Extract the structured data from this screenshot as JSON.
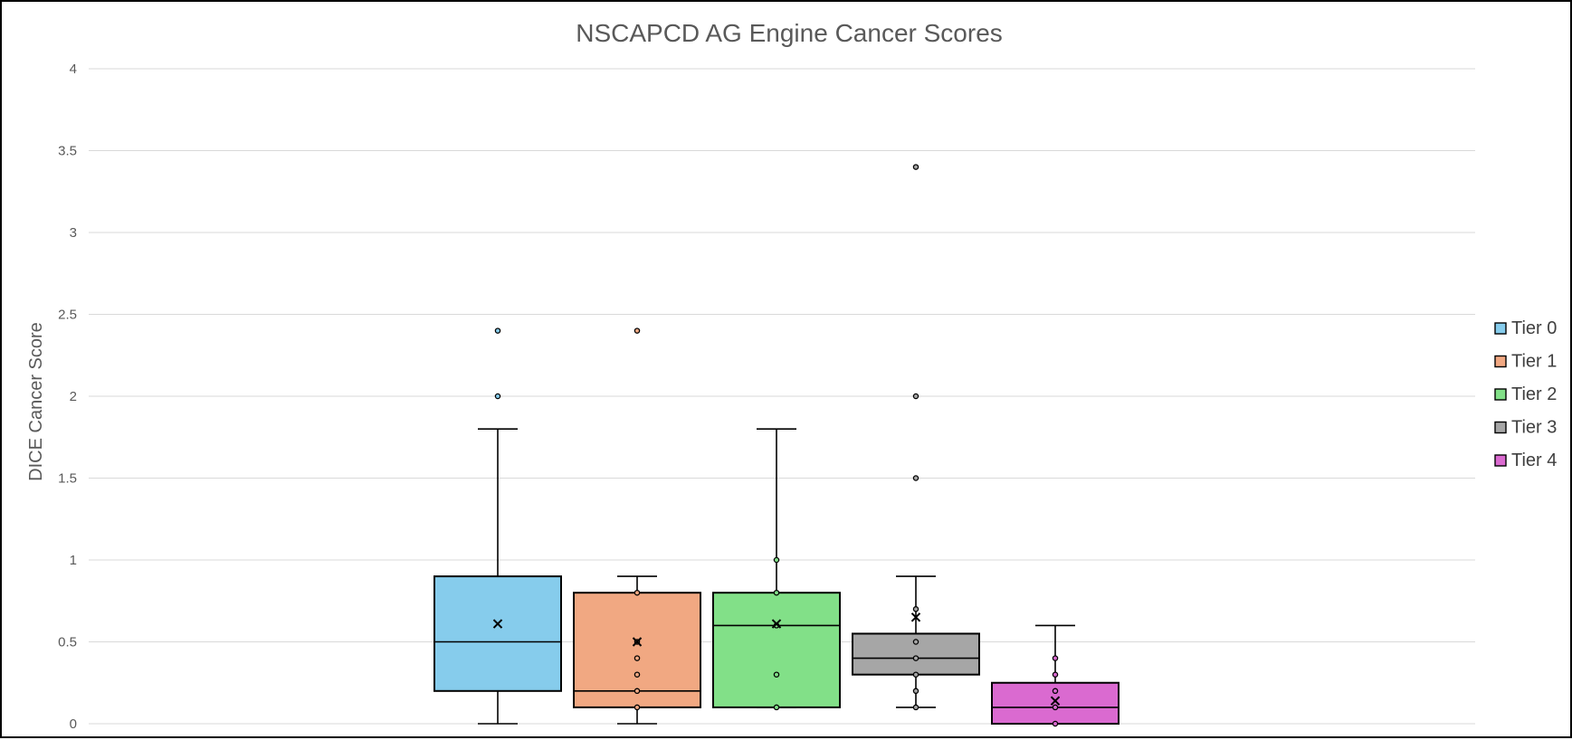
{
  "chart_data": {
    "type": "box",
    "title": "NSCAPCD AG Engine Cancer Scores",
    "xlabel": "",
    "ylabel": "DICE Cancer Score",
    "ylim": [
      0,
      4
    ],
    "yticks": [
      "0",
      "0.5",
      "1",
      "1.5",
      "2",
      "2.5",
      "3",
      "3.5",
      "4"
    ],
    "grid": true,
    "legend_position": "right",
    "series": [
      {
        "name": "Tier 0",
        "color": "#86ccec",
        "min": 0,
        "q1": 0.2,
        "median": 0.5,
        "q3": 0.9,
        "max": 1.8,
        "mean": 0.61,
        "points": [],
        "outliers": [
          2.0,
          2.4
        ]
      },
      {
        "name": "Tier 1",
        "color": "#f1a882",
        "min": 0,
        "q1": 0.1,
        "median": 0.2,
        "q3": 0.8,
        "max": 0.9,
        "mean": 0.5,
        "points": [
          0.8,
          0.5,
          0.4,
          0.3,
          0.2,
          0.1
        ],
        "outliers": [
          2.4
        ]
      },
      {
        "name": "Tier 2",
        "color": "#82e088",
        "min": 0.1,
        "q1": 0.1,
        "median": 0.6,
        "q3": 0.8,
        "max": 1.8,
        "mean": 0.61,
        "points": [
          1.0,
          0.8,
          0.6,
          0.3,
          0.1
        ],
        "outliers": []
      },
      {
        "name": "Tier 3",
        "color": "#a6a6a6",
        "min": 0.1,
        "q1": 0.3,
        "median": 0.4,
        "q3": 0.55,
        "max": 0.9,
        "mean": 0.65,
        "points": [
          0.7,
          0.5,
          0.4,
          0.3,
          0.2,
          0.1
        ],
        "outliers": [
          1.5,
          2.0,
          3.4
        ]
      },
      {
        "name": "Tier 4",
        "color": "#da6ad0",
        "min": 0,
        "q1": 0,
        "median": 0.1,
        "q3": 0.25,
        "max": 0.6,
        "mean": 0.14,
        "points": [
          0.4,
          0.3,
          0.2,
          0.1,
          0
        ],
        "outliers": []
      }
    ]
  }
}
